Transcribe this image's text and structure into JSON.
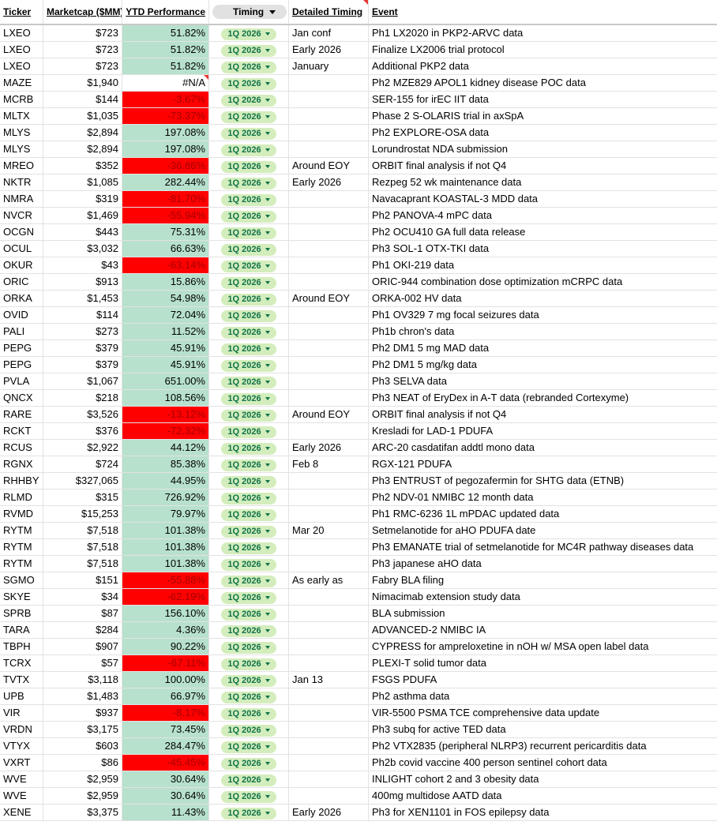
{
  "table": {
    "columns": [
      "Ticker",
      "Marketcap ($MM)",
      "YTD Performance",
      "Timing",
      "Detailed Timing",
      "Event"
    ],
    "rows": [
      [
        "LXEO",
        "$723",
        "51.82%",
        "1Q 2026",
        "Jan conf",
        "Ph1 LX2020 in PKP2-ARVC data"
      ],
      [
        "LXEO",
        "$723",
        "51.82%",
        "1Q 2026",
        "Early 2026",
        "Finalize LX2006 trial protocol"
      ],
      [
        "LXEO",
        "$723",
        "51.82%",
        "1Q 2026",
        "January",
        "Additional PKP2 data"
      ],
      [
        "MAZE",
        "$1,940",
        "#N/A",
        "1Q 2026",
        null,
        "Ph2 MZE829 APOL1 kidney disease POC data"
      ],
      [
        "MCRB",
        "$144",
        "-3.67%",
        "1Q 2026",
        null,
        "SER-155 for irEC IIT data"
      ],
      [
        "MLTX",
        "$1,035",
        "-73.37%",
        "1Q 2026",
        null,
        "Phase 2 S-OLARIS trial in axSpA"
      ],
      [
        "MLYS",
        "$2,894",
        "197.08%",
        "1Q 2026",
        null,
        "Ph2 EXPLORE-OSA data"
      ],
      [
        "MLYS",
        "$2,894",
        "197.08%",
        "1Q 2026",
        null,
        "Lorundrostat NDA submission"
      ],
      [
        "MREO",
        "$352",
        "-36.86%",
        "1Q 2026",
        "Around EOY",
        "ORBIT final analysis if not Q4"
      ],
      [
        "NKTR",
        "$1,085",
        "282.44%",
        "1Q 2026",
        "Early 2026",
        "Rezpeg 52 wk maintenance data"
      ],
      [
        "NMRA",
        "$319",
        "-81.70%",
        "1Q 2026",
        null,
        "Navacaprant KOASTAL-3 MDD data"
      ],
      [
        "NVCR",
        "$1,469",
        "-55.94%",
        "1Q 2026",
        null,
        "Ph2 PANOVA-4 mPC data"
      ],
      [
        "OCGN",
        "$443",
        "75.31%",
        "1Q 2026",
        null,
        "Ph2 OCU410 GA full data release"
      ],
      [
        "OCUL",
        "$3,032",
        "66.63%",
        "1Q 2026",
        null,
        "Ph3 SOL-1 OTX-TKI data"
      ],
      [
        "OKUR",
        "$43",
        "-63.14%",
        "1Q 2026",
        null,
        "Ph1 OKI-219 data"
      ],
      [
        "ORIC",
        "$913",
        "15.86%",
        "1Q 2026",
        null,
        "ORIC-944 combination dose optimization mCRPC data"
      ],
      [
        "ORKA",
        "$1,453",
        "54.98%",
        "1Q 2026",
        "Around EOY",
        "ORKA-002 HV data"
      ],
      [
        "OVID",
        "$114",
        "72.04%",
        "1Q 2026",
        null,
        "Ph1 OV329 7 mg focal seizures data"
      ],
      [
        "PALI",
        "$273",
        "11.52%",
        "1Q 2026",
        null,
        "Ph1b chron's data"
      ],
      [
        "PEPG",
        "$379",
        "45.91%",
        "1Q 2026",
        null,
        "Ph2 DM1 5 mg MAD data"
      ],
      [
        "PEPG",
        "$379",
        "45.91%",
        "1Q 2026",
        null,
        "Ph2 DM1 5 mg/kg data"
      ],
      [
        "PVLA",
        "$1,067",
        "651.00%",
        "1Q 2026",
        null,
        "Ph3 SELVA data"
      ],
      [
        "QNCX",
        "$218",
        "108.56%",
        "1Q 2026",
        null,
        "Ph3 NEAT of EryDex in A-T data (rebranded Cortexyme)"
      ],
      [
        "RARE",
        "$3,526",
        "-13.12%",
        "1Q 2026",
        "Around EOY",
        "ORBIT final analysis if not Q4"
      ],
      [
        "RCKT",
        "$376",
        "-72.32%",
        "1Q 2026",
        null,
        "Kresladi for LAD-1 PDUFA"
      ],
      [
        "RCUS",
        "$2,922",
        "44.12%",
        "1Q 2026",
        "Early 2026",
        "ARC-20 casdatifan addtl mono data"
      ],
      [
        "RGNX",
        "$724",
        "85.38%",
        "1Q 2026",
        "Feb 8",
        "RGX-121 PDUFA"
      ],
      [
        "RHHBY",
        "$327,065",
        "44.95%",
        "1Q 2026",
        null,
        "Ph3 ENTRUST of pegozafermin for SHTG data (ETNB)"
      ],
      [
        "RLMD",
        "$315",
        "726.92%",
        "1Q 2026",
        null,
        "Ph2 NDV-01 NMIBC 12 month data"
      ],
      [
        "RVMD",
        "$15,253",
        "79.97%",
        "1Q 2026",
        null,
        "Ph1 RMC-6236 1L mPDAC updated data"
      ],
      [
        "RYTM",
        "$7,518",
        "101.38%",
        "1Q 2026",
        "Mar 20",
        "Setmelanotide for aHO PDUFA date"
      ],
      [
        "RYTM",
        "$7,518",
        "101.38%",
        "1Q 2026",
        null,
        "Ph3 EMANATE trial of setmelanotide for MC4R pathway diseases data"
      ],
      [
        "RYTM",
        "$7,518",
        "101.38%",
        "1Q 2026",
        null,
        "Ph3 japanese aHO data"
      ],
      [
        "SGMO",
        "$151",
        "-55.88%",
        "1Q 2026",
        "As early as",
        "Fabry BLA filing"
      ],
      [
        "SKYE",
        "$34",
        "-62.19%",
        "1Q 2026",
        null,
        "Nimacimab extension study data"
      ],
      [
        "SPRB",
        "$87",
        "156.10%",
        "1Q 2026",
        null,
        "BLA submission"
      ],
      [
        "TARA",
        "$284",
        "4.36%",
        "1Q 2026",
        null,
        "ADVANCED-2 NMIBC IA"
      ],
      [
        "TBPH",
        "$907",
        "90.22%",
        "1Q 2026",
        null,
        "CYPRESS for ampreloxetine in nOH w/ MSA open label data"
      ],
      [
        "TCRX",
        "$57",
        "-67.11%",
        "1Q 2026",
        null,
        "PLEXI-T solid tumor data"
      ],
      [
        "TVTX",
        "$3,118",
        "100.00%",
        "1Q 2026",
        "Jan 13",
        "FSGS PDUFA"
      ],
      [
        "UPB",
        "$1,483",
        "66.97%",
        "1Q 2026",
        null,
        "Ph2 asthma data"
      ],
      [
        "VIR",
        "$937",
        "-8.17%",
        "1Q 2026",
        null,
        "VIR-5500 PSMA TCE comprehensive data update"
      ],
      [
        "VRDN",
        "$3,175",
        "73.45%",
        "1Q 2026",
        null,
        "Ph3 subq for active TED data"
      ],
      [
        "VTYX",
        "$603",
        "284.47%",
        "1Q 2026",
        null,
        "Ph2 VTX2835 (peripheral NLRP3) recurrent pericarditis data"
      ],
      [
        "VXRT",
        "$86",
        "-45.45%",
        "1Q 2026",
        null,
        "Ph2b covid vaccine 400 person sentinel cohort data"
      ],
      [
        "WVE",
        "$2,959",
        "30.64%",
        "1Q 2026",
        null,
        "INLIGHT cohort 2 and 3 obesity data"
      ],
      [
        "WVE",
        "$2,959",
        "30.64%",
        "1Q 2026",
        null,
        "400mg multidose AATD data"
      ],
      [
        "XENE",
        "$3,375",
        "11.43%",
        "1Q 2026",
        "Early 2026",
        "Ph3 for XEN1101 in FOS epilepsy data"
      ]
    ]
  },
  "style": {
    "positive_fill": "#b7e1cd",
    "negative_fill": "#ff0000",
    "negative_text": "#a50000",
    "chip_fill": "#d4edbc",
    "chip_text": "#11734b"
  }
}
